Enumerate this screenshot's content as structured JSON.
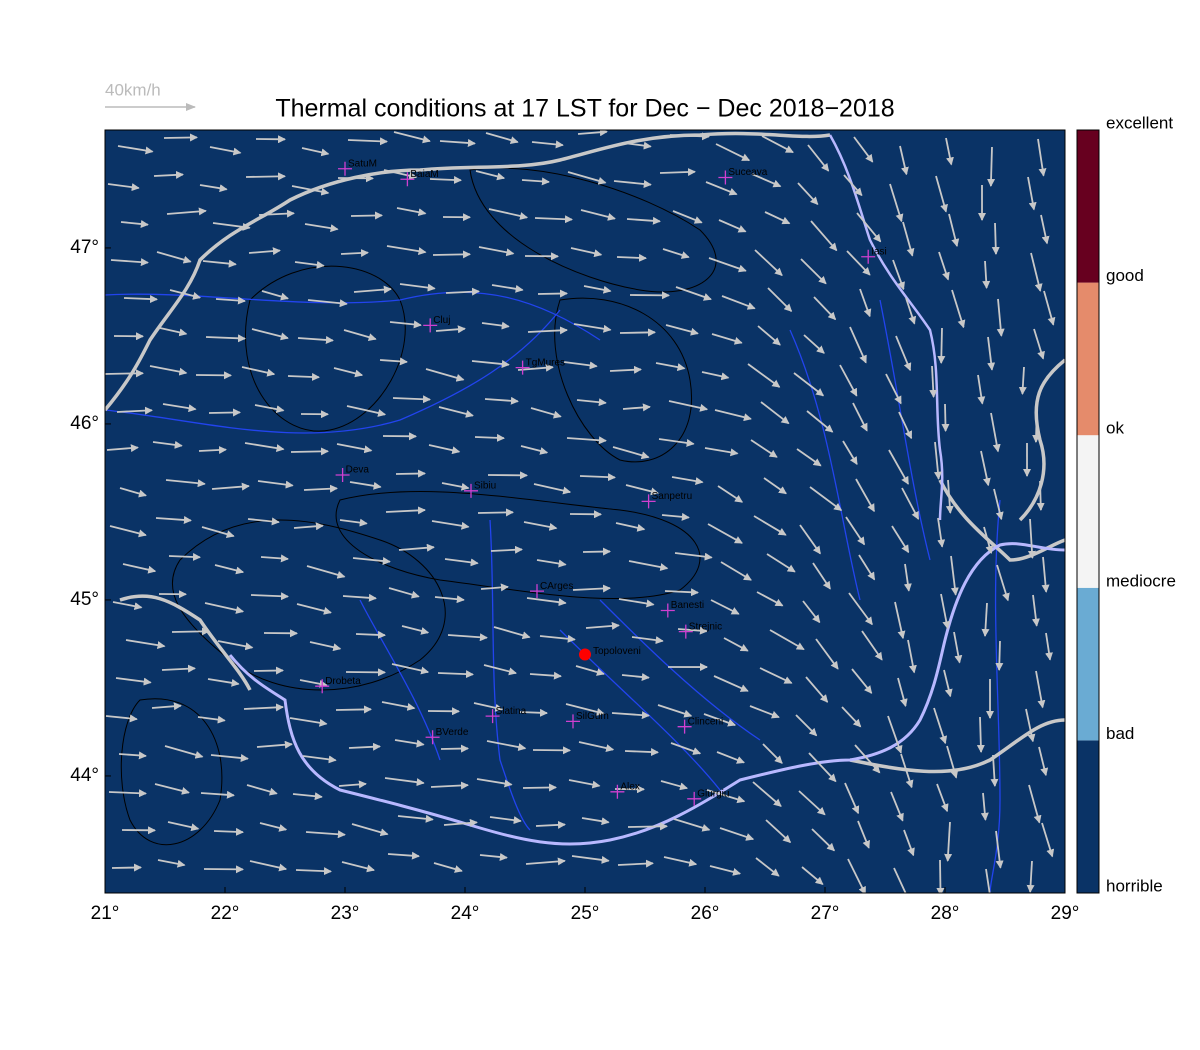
{
  "title": "Thermal conditions at 17 LST for Dec − Dec  2018−2018",
  "wind_legend": {
    "label": "40km/h"
  },
  "map": {
    "xlim": [
      21,
      29
    ],
    "ylim": [
      43.335,
      47.67
    ],
    "xticks": [
      {
        "value": 21,
        "label": "21°"
      },
      {
        "value": 22,
        "label": "22°"
      },
      {
        "value": 23,
        "label": "23°"
      },
      {
        "value": 24,
        "label": "24°"
      },
      {
        "value": 25,
        "label": "25°"
      },
      {
        "value": 26,
        "label": "26°"
      },
      {
        "value": 27,
        "label": "27°"
      },
      {
        "value": 28,
        "label": "28°"
      },
      {
        "value": 29,
        "label": "29°"
      }
    ],
    "yticks": [
      {
        "value": 44,
        "label": "44°"
      },
      {
        "value": 45,
        "label": "45°"
      },
      {
        "value": 46,
        "label": "46°"
      },
      {
        "value": 47,
        "label": "47°"
      }
    ],
    "background": "#0a3366",
    "stations": [
      {
        "name": "SatuM",
        "lon": 23.0,
        "lat": 47.45
      },
      {
        "name": "BaiaM",
        "lon": 23.52,
        "lat": 47.39
      },
      {
        "name": "Suceava",
        "lon": 26.17,
        "lat": 47.4
      },
      {
        "name": "Iasi",
        "lon": 27.36,
        "lat": 46.95
      },
      {
        "name": "Cluj",
        "lon": 23.71,
        "lat": 46.56
      },
      {
        "name": "TgMures",
        "lon": 24.48,
        "lat": 46.32
      },
      {
        "name": "Deva",
        "lon": 22.98,
        "lat": 45.71
      },
      {
        "name": "Sibiu",
        "lon": 24.05,
        "lat": 45.62
      },
      {
        "name": "Sanpetru",
        "lon": 25.53,
        "lat": 45.56
      },
      {
        "name": "CArges",
        "lon": 24.6,
        "lat": 45.05
      },
      {
        "name": "Banesti",
        "lon": 25.69,
        "lat": 44.94
      },
      {
        "name": "Strejnic",
        "lon": 25.84,
        "lat": 44.82
      },
      {
        "name": "Drobeta",
        "lon": 22.81,
        "lat": 44.51
      },
      {
        "name": "Slatina",
        "lon": 24.23,
        "lat": 44.34
      },
      {
        "name": "SilGum",
        "lon": 24.9,
        "lat": 44.31
      },
      {
        "name": "Clinceni",
        "lon": 25.83,
        "lat": 44.28
      },
      {
        "name": "BVerde",
        "lon": 23.73,
        "lat": 44.22
      },
      {
        "name": "Alex",
        "lon": 25.27,
        "lat": 43.91
      },
      {
        "name": "Giurgiu",
        "lon": 25.91,
        "lat": 43.87
      }
    ],
    "site": {
      "name": "Topoloveni",
      "lon": 25.0,
      "lat": 44.69,
      "color": "#ff0000"
    }
  },
  "colorbar": {
    "labels": [
      "horrible",
      "bad",
      "mediocre",
      "ok",
      "good",
      "excellent"
    ],
    "colors": [
      "#0a3366",
      "#6aabd3",
      "#f4f4f4",
      "#e58b6b",
      "#67001f"
    ]
  }
}
